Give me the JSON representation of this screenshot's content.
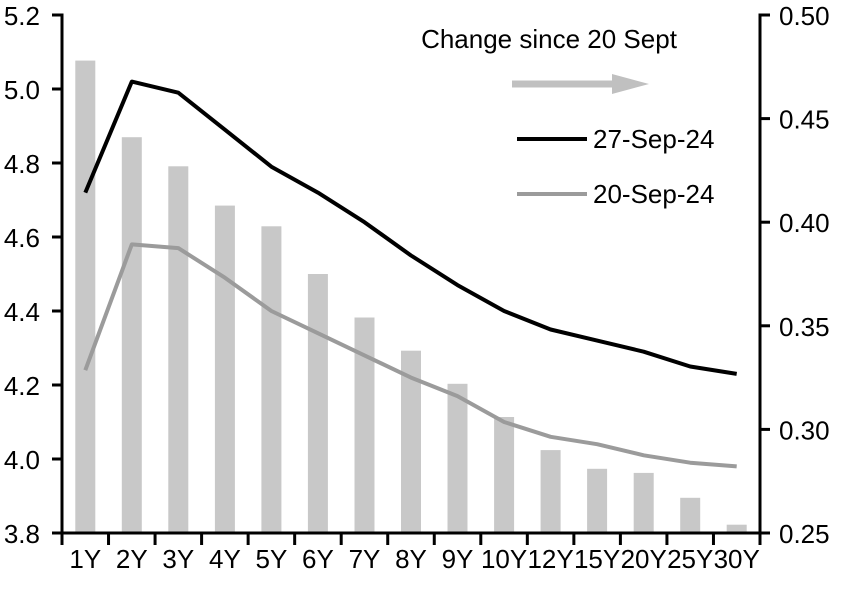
{
  "chart_data": {
    "type": "combo-bar-line",
    "title": "",
    "categories": [
      "1Y",
      "2Y",
      "3Y",
      "4Y",
      "5Y",
      "6Y",
      "7Y",
      "8Y",
      "9Y",
      "10Y",
      "12Y",
      "15Y",
      "20Y",
      "25Y",
      "30Y"
    ],
    "series": [
      {
        "name": "27-Sep-24",
        "type": "line",
        "axis": "left",
        "color": "#000000",
        "values": [
          4.72,
          5.02,
          4.99,
          4.89,
          4.79,
          4.72,
          4.64,
          4.55,
          4.47,
          4.4,
          4.35,
          4.32,
          4.29,
          4.25,
          4.23
        ]
      },
      {
        "name": "20-Sep-24",
        "type": "line",
        "axis": "left",
        "color": "#9b9b9b",
        "values": [
          4.24,
          4.58,
          4.57,
          4.49,
          4.4,
          4.34,
          4.28,
          4.22,
          4.17,
          4.1,
          4.06,
          4.04,
          4.01,
          3.99,
          3.98
        ]
      },
      {
        "name": "Change since 20 Sept",
        "type": "bar",
        "axis": "right",
        "color": "#c8c8c8",
        "values": [
          0.478,
          0.441,
          0.427,
          0.408,
          0.398,
          0.375,
          0.354,
          0.338,
          0.322,
          0.306,
          0.29,
          0.281,
          0.279,
          0.267,
          0.254
        ]
      }
    ],
    "left_axis": {
      "min": 3.8,
      "max": 5.2,
      "tick_values": [
        5.2,
        5.0,
        4.8,
        4.6,
        4.4,
        4.2,
        4.0,
        3.8
      ],
      "tick_labels": [
        "5.2",
        "5.0",
        "4.8",
        "4.6",
        "4.4",
        "4.2",
        "4.0",
        "3.8"
      ]
    },
    "right_axis": {
      "min": 0.25,
      "max": 0.5,
      "tick_values": [
        0.5,
        0.45,
        0.4,
        0.35,
        0.3,
        0.25
      ],
      "tick_labels": [
        "0.50",
        "0.45",
        "0.40",
        "0.35",
        "0.30",
        "0.25"
      ]
    },
    "legend": {
      "title": "Change since 20 Sept",
      "arrow_color": "#c0c0c0"
    },
    "layout": {
      "grid": "off",
      "legend_position": "inside-top-right",
      "bar_gap_categories": "bars start at plot bottom (right axis 0.25)"
    }
  }
}
